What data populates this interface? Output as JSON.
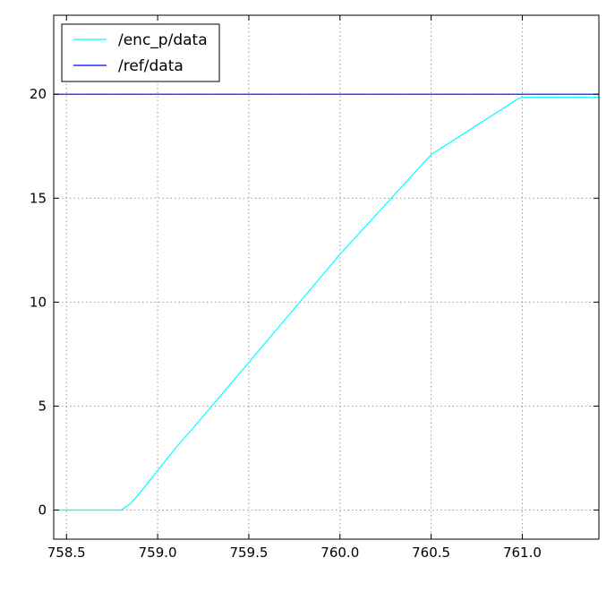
{
  "chart_data": {
    "type": "line",
    "title": "",
    "xlabel": "",
    "ylabel": "",
    "xlim": [
      758.43,
      761.42
    ],
    "ylim": [
      -1.4,
      23.8
    ],
    "x_ticks": [
      758.5,
      759.0,
      759.5,
      760.0,
      760.5,
      761.0
    ],
    "x_tick_labels": [
      "758.5",
      "759.0",
      "759.5",
      "760.0",
      "760.5",
      "761.0"
    ],
    "y_ticks": [
      0,
      5,
      10,
      15,
      20
    ],
    "y_tick_labels": [
      "0",
      "5",
      "10",
      "15",
      "20"
    ],
    "grid": true,
    "grid_style": "dotted",
    "legend_position": "upper-left",
    "series": [
      {
        "name": "/enc_p/data",
        "color": "#00ffff",
        "x": [
          758.45,
          758.8,
          758.85,
          758.9,
          759.0,
          759.1,
          759.2,
          759.5,
          760.0,
          760.5,
          760.98,
          761.0,
          761.42
        ],
        "y": [
          0.0,
          0.0,
          0.3,
          0.8,
          1.9,
          3.0,
          4.0,
          7.1,
          12.3,
          17.1,
          19.8,
          19.85,
          19.85
        ]
      },
      {
        "name": "/ref/data",
        "color": "#0000ff",
        "x": [
          758.43,
          761.42
        ],
        "y": [
          20.0,
          20.0
        ]
      }
    ]
  }
}
